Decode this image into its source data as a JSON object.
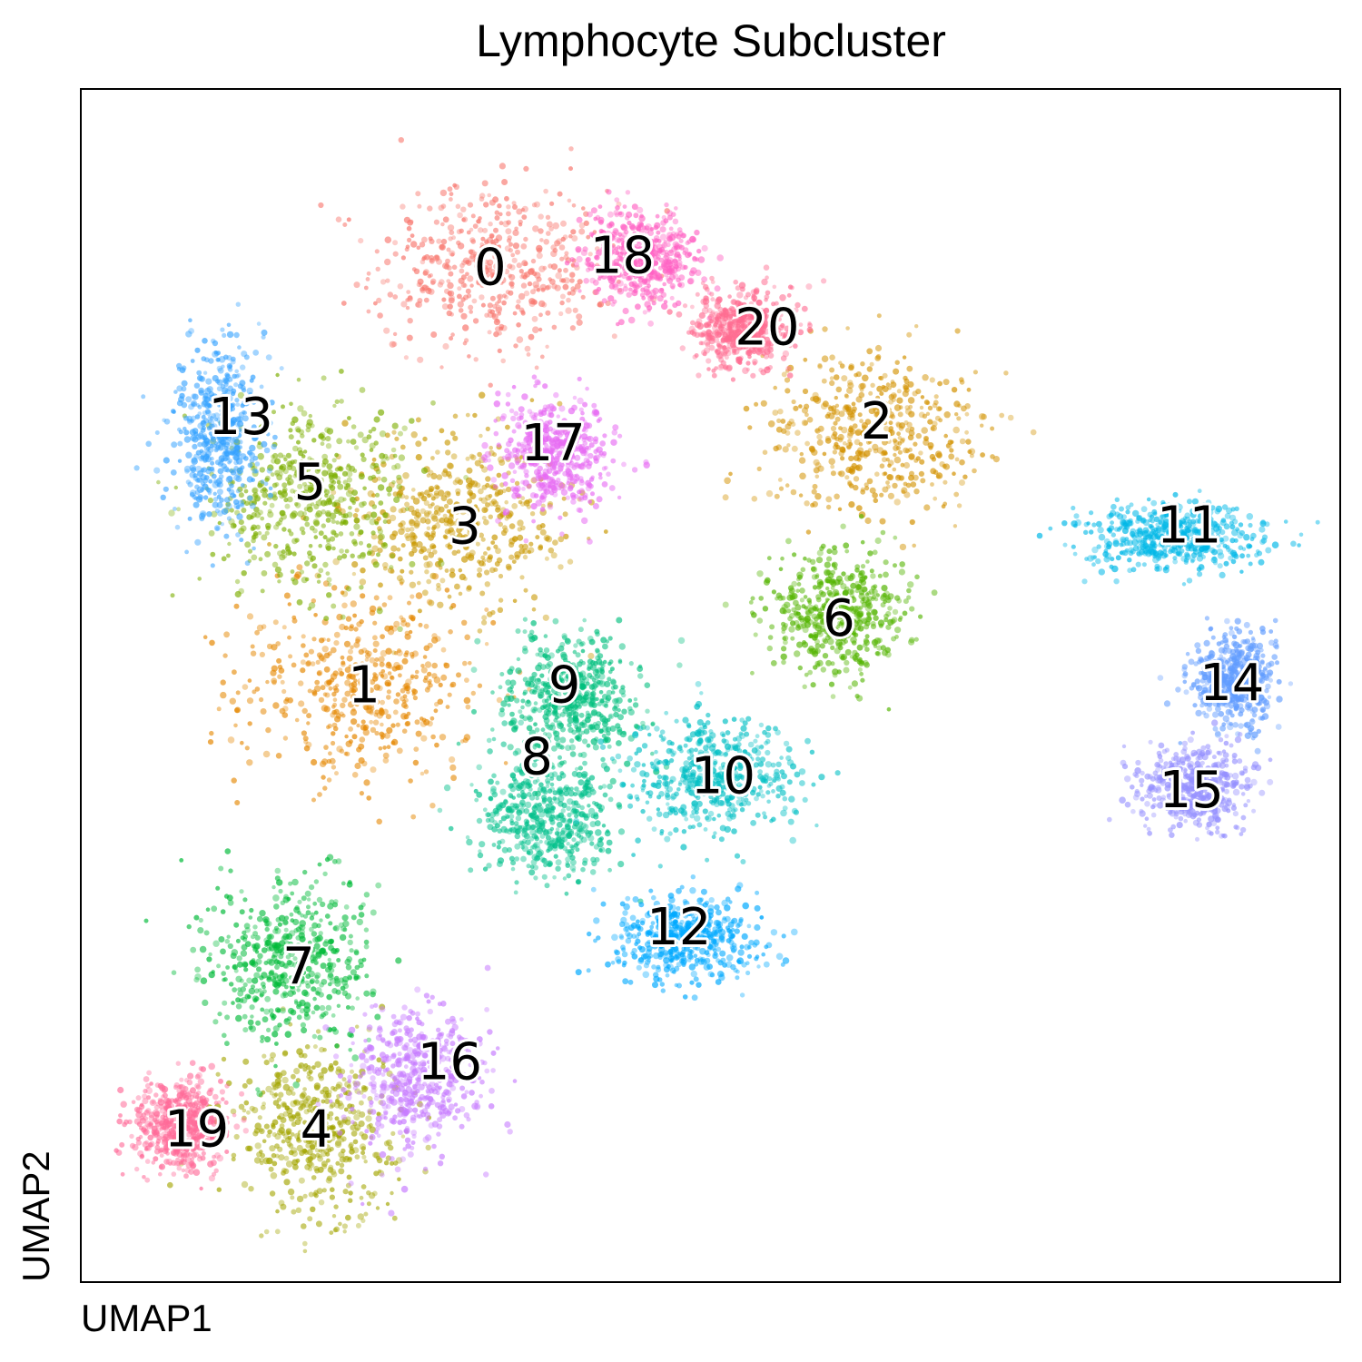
{
  "chart_data": {
    "type": "scatter",
    "title": "Lymphocyte Subcluster",
    "xlabel": "UMAP1",
    "ylabel": "UMAP2",
    "xlim": [
      0,
      100
    ],
    "ylim": [
      0,
      100
    ],
    "grid": false,
    "legend": "on data",
    "clusters": [
      {
        "label": "0",
        "color": "#F8766D",
        "center": [
          32.5,
          85.0
        ],
        "spread": [
          8.5,
          6.5
        ]
      },
      {
        "label": "1",
        "color": "#E58700",
        "center": [
          22.5,
          50.0
        ],
        "spread": [
          9.0,
          7.5
        ]
      },
      {
        "label": "2",
        "color": "#D39200",
        "center": [
          63.0,
          71.5
        ],
        "spread": [
          8.0,
          6.0
        ]
      },
      {
        "label": "3",
        "color": "#C99800",
        "center": [
          30.0,
          63.5
        ],
        "spread": [
          8.0,
          6.5
        ]
      },
      {
        "label": "4",
        "color": "#A3A500",
        "center": [
          19.0,
          13.0
        ],
        "spread": [
          6.0,
          6.0
        ]
      },
      {
        "label": "5",
        "color": "#7CAE00",
        "center": [
          18.0,
          66.0
        ],
        "spread": [
          7.0,
          7.5
        ]
      },
      {
        "label": "6",
        "color": "#53B400",
        "center": [
          60.0,
          56.0
        ],
        "spread": [
          5.0,
          4.5
        ]
      },
      {
        "label": "7",
        "color": "#00BA38",
        "center": [
          16.5,
          27.0
        ],
        "spread": [
          6.0,
          6.5
        ]
      },
      {
        "label": "8",
        "color": "#00C08B",
        "center": [
          37.0,
          39.0
        ],
        "spread": [
          5.0,
          4.5
        ]
      },
      {
        "label": "9",
        "color": "#00BF7D",
        "center": [
          39.0,
          49.0
        ],
        "spread": [
          5.0,
          4.5
        ]
      },
      {
        "label": "10",
        "color": "#00BFC4",
        "center": [
          50.0,
          42.5
        ],
        "spread": [
          6.0,
          4.5
        ]
      },
      {
        "label": "11",
        "color": "#00B8E7",
        "center": [
          87.0,
          62.5
        ],
        "spread": [
          6.5,
          2.5
        ]
      },
      {
        "label": "12",
        "color": "#00A9FF",
        "center": [
          48.0,
          29.0
        ],
        "spread": [
          5.5,
          3.0
        ]
      },
      {
        "label": "13",
        "color": "#35A2FF",
        "center": [
          11.0,
          71.0
        ],
        "spread": [
          3.0,
          7.0
        ]
      },
      {
        "label": "14",
        "color": "#619CFF",
        "center": [
          91.5,
          50.5
        ],
        "spread": [
          3.0,
          3.5
        ]
      },
      {
        "label": "15",
        "color": "#9590FF",
        "center": [
          88.5,
          41.5
        ],
        "spread": [
          4.0,
          3.0
        ]
      },
      {
        "label": "16",
        "color": "#C77CFF",
        "center": [
          26.5,
          17.0
        ],
        "spread": [
          5.0,
          5.5
        ]
      },
      {
        "label": "17",
        "color": "#E76BF3",
        "center": [
          37.5,
          69.5
        ],
        "spread": [
          4.0,
          4.5
        ]
      },
      {
        "label": "18",
        "color": "#FF61C3",
        "center": [
          44.5,
          86.0
        ],
        "spread": [
          4.0,
          3.5
        ]
      },
      {
        "label": "19",
        "color": "#FF6A98",
        "center": [
          8.0,
          13.0
        ],
        "spread": [
          3.5,
          3.5
        ]
      },
      {
        "label": "20",
        "color": "#FF6C91",
        "center": [
          52.5,
          80.0
        ],
        "spread": [
          3.5,
          3.0
        ]
      }
    ],
    "labels": [
      {
        "text": "0",
        "x": 32.5,
        "y": 85.0
      },
      {
        "text": "18",
        "x": 43.0,
        "y": 86.0
      },
      {
        "text": "20",
        "x": 54.5,
        "y": 80.0
      },
      {
        "text": "13",
        "x": 12.7,
        "y": 72.5
      },
      {
        "text": "17",
        "x": 37.5,
        "y": 70.3
      },
      {
        "text": "2",
        "x": 63.2,
        "y": 72.1
      },
      {
        "text": "5",
        "x": 18.2,
        "y": 67.0
      },
      {
        "text": "3",
        "x": 30.5,
        "y": 63.3
      },
      {
        "text": "11",
        "x": 88.0,
        "y": 63.4
      },
      {
        "text": "6",
        "x": 60.2,
        "y": 55.6
      },
      {
        "text": "1",
        "x": 22.5,
        "y": 50.0
      },
      {
        "text": "9",
        "x": 38.4,
        "y": 50.0
      },
      {
        "text": "14",
        "x": 91.4,
        "y": 50.2
      },
      {
        "text": "8",
        "x": 36.2,
        "y": 44.0
      },
      {
        "text": "10",
        "x": 51.0,
        "y": 42.4
      },
      {
        "text": "15",
        "x": 88.2,
        "y": 41.2
      },
      {
        "text": "12",
        "x": 47.5,
        "y": 29.7
      },
      {
        "text": "7",
        "x": 17.3,
        "y": 26.4
      },
      {
        "text": "16",
        "x": 29.3,
        "y": 18.4
      },
      {
        "text": "19",
        "x": 9.2,
        "y": 12.8
      },
      {
        "text": "4",
        "x": 18.7,
        "y": 12.8
      }
    ]
  }
}
